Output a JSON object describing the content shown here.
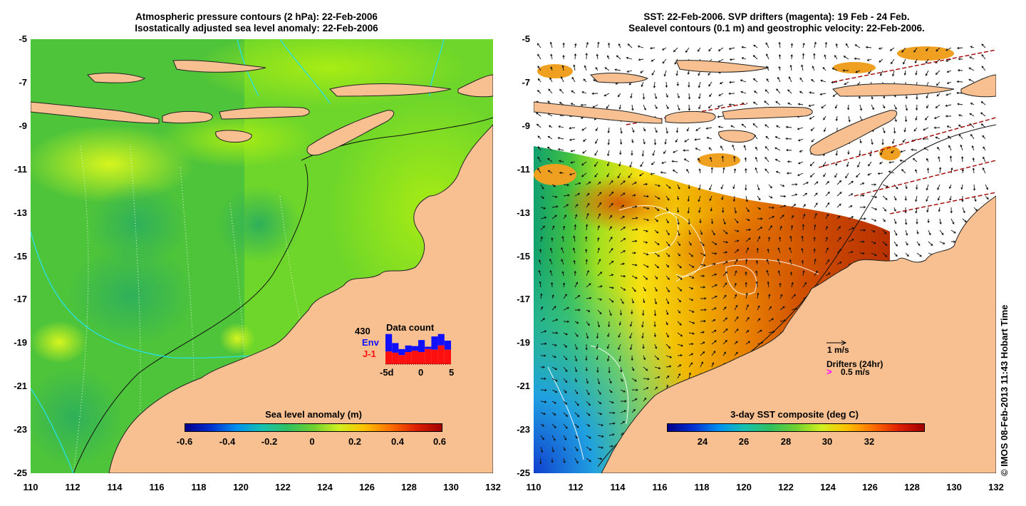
{
  "left_panel": {
    "title_line1": "Atmospheric pressure contours (2 hPa): 22-Feb-2006",
    "title_line2": "Isostatically adjusted sea level anomaly: 22-Feb-2006",
    "y_labels": [
      "-5",
      "-7",
      "-9",
      "-11",
      "-13",
      "-15",
      "-17",
      "-19",
      "-21",
      "-23",
      "-25"
    ],
    "x_labels": [
      "110",
      "112",
      "114",
      "116",
      "118",
      "120",
      "122",
      "124",
      "126",
      "128",
      "130",
      "132"
    ],
    "colorbar": {
      "title": "Sea level anomaly (m)",
      "ticks": [
        "-0.6",
        "-0.4",
        "-0.2",
        "0",
        "0.2",
        "0.4",
        "0.6"
      ]
    },
    "data_count": {
      "title": "Data count",
      "count": "430",
      "env_label": "Env",
      "j1_label": "J-1",
      "x_ticks": [
        "-5d",
        "0",
        "5"
      ],
      "env_color": "#1010ff",
      "j1_color": "#ff1010",
      "bars": [
        {
          "j1": 0.42,
          "total": 1.0
        },
        {
          "j1": 0.38,
          "total": 0.7
        },
        {
          "j1": 0.3,
          "total": 0.5
        },
        {
          "j1": 0.4,
          "total": 0.62
        },
        {
          "j1": 0.45,
          "total": 0.6
        },
        {
          "j1": 0.4,
          "total": 0.8
        },
        {
          "j1": 0.5,
          "total": 0.58
        },
        {
          "j1": 0.48,
          "total": 0.92
        },
        {
          "j1": 0.62,
          "total": 1.0
        },
        {
          "j1": 0.48,
          "total": 0.78
        }
      ]
    }
  },
  "right_panel": {
    "title_line1": "SST: 22-Feb-2006. SVP drifters (magenta): 19 Feb - 24 Feb.",
    "title_line2": "Sealevel contours (0.1 m) and geostrophic velocity: 22-Feb-2006.",
    "y_labels": [
      "-5",
      "-7",
      "-9",
      "-11",
      "-13",
      "-15",
      "-17",
      "-19",
      "-21",
      "-23",
      "-25"
    ],
    "x_labels": [
      "110",
      "112",
      "114",
      "116",
      "118",
      "120",
      "122",
      "124",
      "126",
      "128",
      "130",
      "132"
    ],
    "colorbar": {
      "title": "3-day SST composite (deg C)",
      "ticks": [
        "24",
        "26",
        "28",
        "30",
        "32"
      ]
    },
    "legend": {
      "velocity_label": "1 m/s",
      "drifters_label": "Drifters (24hr)",
      "drifter_speed_label": "0.5 m/s",
      "drifter_color": "#ff00ff"
    }
  },
  "copyright": "© IMOS 08-Feb-2013 11:43 Hobart Time",
  "colors": {
    "land": "#f8c090",
    "sla_background": "#6ccf2c",
    "sst_background": "#ffffff"
  }
}
